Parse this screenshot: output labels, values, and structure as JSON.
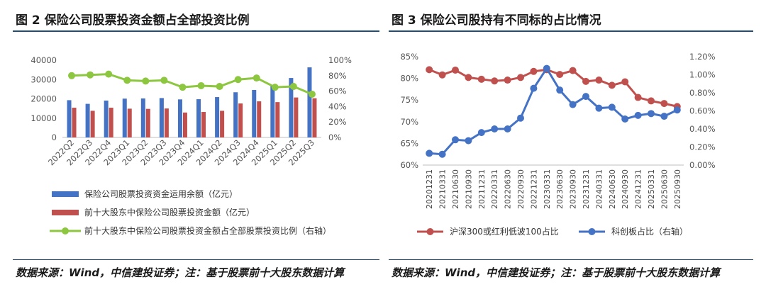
{
  "left": {
    "title": "图 2 保险公司股票投资金额占全部投资比例",
    "source": "数据来源：Wind，中信建投证券；注：基于股票前十大股东数据计算",
    "chart_data": {
      "type": "bar",
      "categories": [
        "2022Q2",
        "2022Q3",
        "2022Q4",
        "2023Q1",
        "2023Q2",
        "2023Q3",
        "2023Q4",
        "2024Q1",
        "2024Q2",
        "2024Q3",
        "2024Q4",
        "2025Q1",
        "2025Q2",
        "2025Q3"
      ],
      "series": [
        {
          "name": "保险公司股票投资资金运用余额（亿元）",
          "kind": "bar",
          "axis": "left",
          "color": "#4472c4",
          "values": [
            19300,
            17400,
            19100,
            20100,
            20200,
            20400,
            19700,
            19800,
            20900,
            23400,
            24600,
            26800,
            30800,
            36300
          ]
        },
        {
          "name": "前十大股东中保险公司股票投资金额（亿元）",
          "kind": "bar",
          "axis": "left",
          "color": "#c0504d",
          "values": [
            15400,
            13800,
            15400,
            14900,
            14800,
            15000,
            12900,
            13200,
            13800,
            17600,
            18700,
            18300,
            20700,
            20300
          ]
        },
        {
          "name": "前十大股东中保险公司股票投资金额占全部股票投资比例（右轴）",
          "kind": "line",
          "axis": "right",
          "color": "#8dc63f",
          "values": [
            80,
            81,
            82,
            74,
            73,
            74,
            65,
            67,
            66,
            75,
            77,
            65,
            66,
            56
          ]
        }
      ],
      "ylim": [
        0,
        40000
      ],
      "yticks": [
        "0",
        "10000",
        "20000",
        "30000",
        "40000"
      ],
      "y2lim": [
        0,
        100
      ],
      "y2ticks": [
        "0%",
        "20%",
        "40%",
        "60%",
        "80%",
        "100%"
      ]
    }
  },
  "right": {
    "title": "图 3 保险公司股持有不同标的占比情况",
    "source": "数据来源：Wind，中信建投证券；注：基于股票前十大股东数据计算",
    "chart_data": {
      "type": "line",
      "categories": [
        "20201231",
        "20210331",
        "20210630",
        "20210930",
        "20211231",
        "20220331",
        "20220630",
        "20220930",
        "20221231",
        "20230331",
        "20230630",
        "20230930",
        "20231231",
        "20240331",
        "20240630",
        "20240930",
        "20241231",
        "20250331",
        "20250630",
        "20250930"
      ],
      "series": [
        {
          "name": "沪深300或红利低波100占比",
          "axis": "left",
          "color": "#c0504d",
          "values": [
            82,
            80.8,
            81.9,
            80.2,
            79.8,
            79.4,
            79.6,
            80.2,
            81.6,
            82,
            80.9,
            81.8,
            79.3,
            79.6,
            78.4,
            79.2,
            75.6,
            74.8,
            74.2,
            73.5
          ]
        },
        {
          "name": "科创板占比（右轴）",
          "axis": "right",
          "color": "#4472c4",
          "values": [
            0.13,
            0.12,
            0.28,
            0.27,
            0.36,
            0.4,
            0.4,
            0.52,
            0.85,
            1.07,
            0.83,
            0.67,
            0.76,
            0.63,
            0.64,
            0.51,
            0.55,
            0.57,
            0.54,
            0.61
          ]
        }
      ],
      "ylim": [
        60,
        85
      ],
      "yticks": [
        "60%",
        "65%",
        "70%",
        "75%",
        "80%",
        "85%"
      ],
      "y2lim": [
        0,
        1.2
      ],
      "y2ticks": [
        "0.00%",
        "0.20%",
        "0.40%",
        "0.60%",
        "0.80%",
        "1.00%",
        "1.20%"
      ]
    }
  }
}
